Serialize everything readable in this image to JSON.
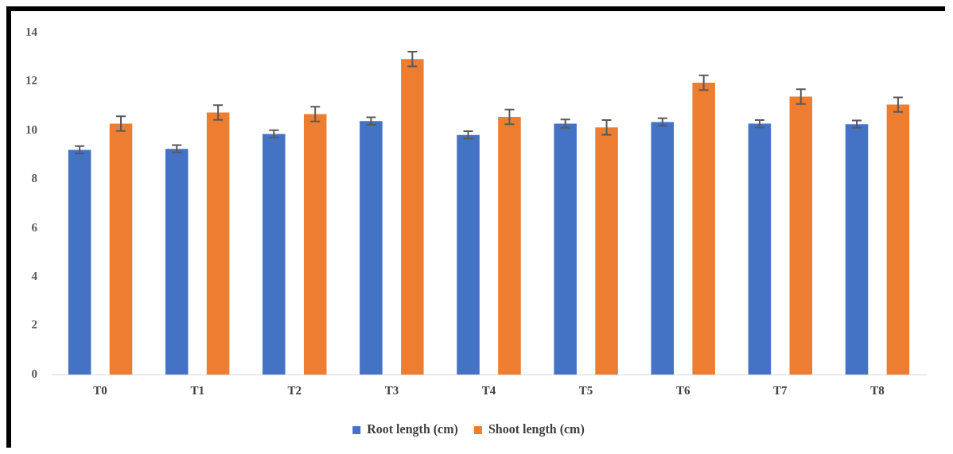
{
  "chart_data": {
    "type": "bar",
    "categories": [
      "T0",
      "T1",
      "T2",
      "T3",
      "T4",
      "T5",
      "T6",
      "T7",
      "T8"
    ],
    "series": [
      {
        "name": "Root length (cm)",
        "color": "#4472c4",
        "values": [
          9.2,
          9.24,
          9.85,
          10.38,
          9.81,
          10.27,
          10.34,
          10.27,
          10.25
        ],
        "errors": [
          0.15,
          0.15,
          0.15,
          0.15,
          0.15,
          0.17,
          0.15,
          0.15,
          0.15
        ]
      },
      {
        "name": "Shoot length (cm)",
        "color": "#ed7d31",
        "values": [
          10.27,
          10.73,
          10.66,
          12.92,
          10.55,
          10.12,
          11.95,
          11.38,
          11.05
        ],
        "errors": [
          0.3,
          0.3,
          0.3,
          0.3,
          0.3,
          0.3,
          0.3,
          0.3,
          0.3
        ]
      }
    ],
    "ylim": [
      0,
      14
    ],
    "yticks": [
      0,
      2,
      4,
      6,
      8,
      10,
      12,
      14
    ],
    "grid": false,
    "legend": "bottom"
  }
}
